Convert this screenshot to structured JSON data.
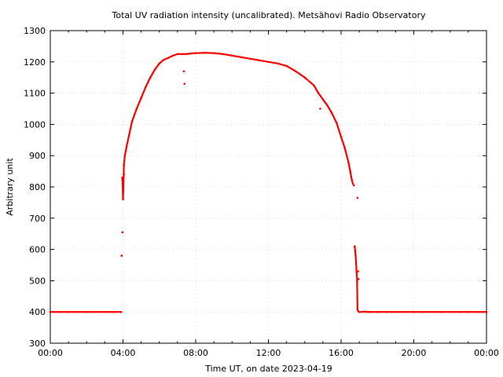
{
  "chart_data": {
    "type": "scatter",
    "title": "Total UV radiation intensity (uncalibrated). Metsähovi Radio Observatory",
    "xlabel": "Time UT, on date 2023-04-19",
    "ylabel": "Arbitrary unit",
    "xlim_hours": [
      0,
      24
    ],
    "ylim": [
      300,
      1300
    ],
    "x_tick_labels": [
      "00:00",
      "04:00",
      "08:00",
      "12:00",
      "16:00",
      "20:00",
      "00:00"
    ],
    "y_ticks": [
      300,
      400,
      500,
      600,
      700,
      800,
      900,
      1000,
      1100,
      1200,
      1300
    ],
    "grid": true,
    "marker_color": "#ff0000",
    "series": [
      {
        "x_hours": [
          0.0,
          0.5,
          1.0,
          1.5,
          2.0,
          2.5,
          3.0,
          3.5,
          3.9,
          3.93,
          3.96,
          3.98,
          4.0,
          4.02,
          4.05,
          4.1,
          4.2,
          4.35,
          4.5,
          4.75,
          5.0,
          5.25,
          5.5,
          5.75,
          6.0,
          6.25,
          6.5,
          6.75,
          7.0,
          7.25,
          7.5,
          7.75,
          8.0,
          8.5,
          9.0,
          9.5,
          10.0,
          10.5,
          11.0,
          11.5,
          12.0,
          12.5,
          13.0,
          13.5,
          14.0,
          14.5,
          14.75,
          15.0,
          15.25,
          15.5,
          15.75,
          16.0,
          16.2,
          16.4,
          16.5,
          16.6,
          16.65,
          16.7,
          16.75,
          16.8,
          16.85,
          16.88,
          16.9,
          16.95,
          17.0,
          17.1,
          17.25,
          17.5,
          18.0,
          18.5,
          19.0,
          19.5,
          20.0,
          20.5,
          21.0,
          21.5,
          22.0,
          22.5,
          23.0,
          23.5,
          24.0
        ],
        "values": [
          400,
          400,
          400,
          400,
          400,
          400,
          400,
          400,
          400,
          580,
          830,
          810,
          760,
          795,
          870,
          900,
          930,
          970,
          1010,
          1050,
          1085,
          1120,
          1150,
          1175,
          1195,
          1207,
          1213,
          1220,
          1225,
          1225,
          1225,
          1227,
          1228,
          1229,
          1228,
          1225,
          1220,
          1215,
          1210,
          1205,
          1200,
          1195,
          1187,
          1170,
          1150,
          1125,
          1100,
          1080,
          1060,
          1035,
          1005,
          960,
          925,
          880,
          850,
          820,
          810,
          805,
          610,
          580,
          530,
          500,
          407,
          402,
          400,
          400,
          401,
          400,
          400,
          400,
          400,
          400,
          400,
          400,
          400,
          400,
          400,
          400,
          400,
          400,
          400
        ]
      },
      {
        "name": "",
        "x_hours": [
          3.92,
          3.97,
          4.05,
          7.35,
          7.38,
          14.85,
          16.9,
          16.93,
          16.96
        ],
        "values": [
          580,
          655,
          840,
          1170,
          1130,
          1050,
          765,
          530,
          505
        ]
      }
    ]
  }
}
